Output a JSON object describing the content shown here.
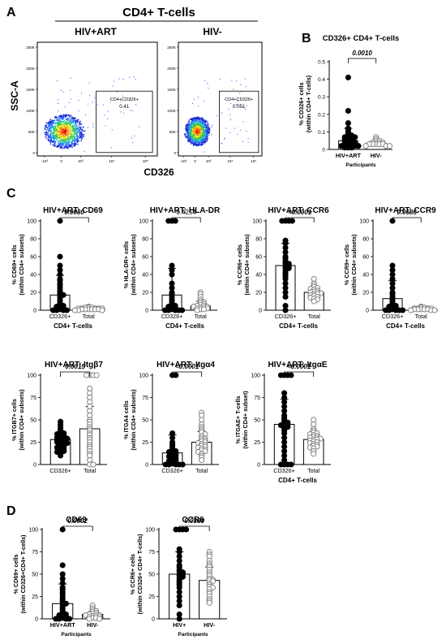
{
  "panel_letters": [
    "A",
    "B",
    "C",
    "D"
  ],
  "panelA": {
    "title": "CD4+ T-cells",
    "groups": [
      "HIV+ART",
      "HIV-"
    ],
    "ylabel": "SSC-A",
    "xlabel": "CD326",
    "gates": [
      {
        "label": "CD4+CD326+",
        "value": "0.41"
      },
      {
        "label": "CD4+CD326+",
        "value": "0.051"
      }
    ],
    "y_ticks": [
      "250K",
      "200K",
      "150K",
      "100K",
      "50K",
      "0"
    ],
    "x_ticks": [
      "-10³",
      "0",
      "10³",
      "10⁴",
      "10⁵"
    ]
  },
  "chart_data": [
    {
      "id": "B",
      "type": "scatter",
      "title": "CD326+ CD4+ T-cells",
      "categories": [
        "HIV+ART",
        "HIV-"
      ],
      "xlabel": "Participants",
      "ylabel": [
        "% CD326+ cells",
        "(within CD4+ T-cells)"
      ],
      "ylim": [
        0,
        0.5
      ],
      "yticks": [
        0,
        0.1,
        0.2,
        0.3,
        0.4,
        0.5
      ],
      "pvalue": "0.0010",
      "p_italic": true,
      "groups": [
        {
          "style": "filled",
          "median": 0.05,
          "sd": 0.07,
          "values": [
            0.41,
            0.22,
            0.15,
            0.12,
            0.11,
            0.1,
            0.09,
            0.08,
            0.08,
            0.07,
            0.07,
            0.06,
            0.06,
            0.06,
            0.05,
            0.05,
            0.05,
            0.04,
            0.04,
            0.04,
            0.04,
            0.03,
            0.03,
            0.03,
            0.02,
            0.02,
            0.02,
            0.01,
            0.01,
            0.01
          ]
        },
        {
          "style": "open",
          "median": 0.035,
          "sd": 0.015,
          "values": [
            0.07,
            0.06,
            0.05,
            0.05,
            0.04,
            0.04,
            0.04,
            0.04,
            0.03,
            0.03,
            0.03,
            0.03,
            0.03,
            0.02,
            0.02,
            0.02
          ]
        }
      ]
    },
    {
      "id": "C1",
      "type": "scatter",
      "title": "HIV+ART: CD69",
      "categories": [
        "CD326+",
        "Total"
      ],
      "xlabel": "CD4+ T-cells",
      "ylabel": [
        "% CD69+ cells",
        "(within CD4+ subsets)"
      ],
      "ylim": [
        0,
        100
      ],
      "yticks": [
        0,
        20,
        40,
        60,
        80,
        100
      ],
      "pvalue": "0.0080",
      "p_italic": true,
      "groups": [
        {
          "style": "filled",
          "median": 17,
          "sd": 22,
          "values": [
            100,
            60,
            50,
            45,
            40,
            35,
            33,
            30,
            28,
            25,
            22,
            20,
            18,
            17,
            15,
            12,
            10,
            8,
            6,
            5,
            4,
            3,
            2,
            1,
            0,
            0,
            0,
            0
          ]
        },
        {
          "style": "open",
          "median": 2,
          "sd": 1,
          "values": [
            4,
            3,
            3,
            3,
            2,
            2,
            2,
            2,
            2,
            1,
            1,
            1,
            1,
            1,
            1,
            0,
            0,
            0
          ]
        }
      ]
    },
    {
      "id": "C2",
      "type": "scatter",
      "title": "HIV+ART: HLA-DR",
      "categories": [
        "CD326+",
        "Total"
      ],
      "xlabel": "CD4+ T-cells",
      "ylabel": [
        "% HLA-DR+ cells",
        "(within CD4+ subsets)"
      ],
      "ylim": [
        0,
        100
      ],
      "yticks": [
        0,
        20,
        40,
        60,
        80,
        100
      ],
      "pvalue": "0.4254",
      "p_italic": false,
      "groups": [
        {
          "style": "filled",
          "median": 17,
          "sd": 30,
          "values": [
            100,
            100,
            100,
            50,
            45,
            40,
            30,
            25,
            20,
            18,
            15,
            12,
            10,
            8,
            6,
            5,
            4,
            3,
            2,
            1,
            0,
            0,
            0,
            0,
            0
          ]
        },
        {
          "style": "open",
          "median": 5,
          "sd": 5,
          "values": [
            20,
            18,
            15,
            12,
            10,
            9,
            8,
            7,
            6,
            5,
            5,
            4,
            4,
            3,
            3,
            2,
            2,
            1,
            1,
            0
          ]
        }
      ]
    },
    {
      "id": "C3",
      "type": "scatter",
      "title": "HIV+ART: CCR6",
      "categories": [
        "CD326+",
        "Total"
      ],
      "xlabel": "CD4+ T-cells",
      "ylabel": [
        "% CCR6+ cells",
        "(within CD4+ subsets)"
      ],
      "ylim": [
        0,
        100
      ],
      "yticks": [
        0,
        20,
        40,
        60,
        80,
        100
      ],
      "pvalue": "<0.0001",
      "p_italic": true,
      "groups": [
        {
          "style": "filled",
          "median": 50,
          "sd": 25,
          "values": [
            100,
            100,
            100,
            100,
            78,
            75,
            70,
            65,
            60,
            58,
            55,
            53,
            52,
            50,
            50,
            48,
            47,
            45,
            42,
            40,
            38,
            35,
            30,
            25,
            20,
            15,
            5,
            0
          ]
        },
        {
          "style": "open",
          "median": 20,
          "sd": 5,
          "values": [
            35,
            30,
            28,
            26,
            25,
            24,
            23,
            22,
            21,
            20,
            20,
            19,
            18,
            18,
            17,
            16,
            15,
            14,
            13,
            12,
            10
          ]
        }
      ]
    },
    {
      "id": "C4",
      "type": "scatter",
      "title": "HIV+ART: CCR9",
      "categories": [
        "CD326+",
        "Total"
      ],
      "xlabel": "CD4+ T-cells",
      "ylabel": [
        "% CCR9+ cells",
        "(within CD4+ subsets)"
      ],
      "ylim": [
        0,
        100
      ],
      "yticks": [
        0,
        20,
        40,
        60,
        80,
        100
      ],
      "pvalue": "0.0686",
      "p_italic": true,
      "groups": [
        {
          "style": "filled",
          "median": 13,
          "sd": 20,
          "values": [
            100,
            50,
            45,
            40,
            35,
            30,
            25,
            20,
            18,
            15,
            12,
            10,
            8,
            6,
            5,
            4,
            3,
            2,
            1,
            0,
            0,
            0,
            0,
            0
          ]
        },
        {
          "style": "open",
          "median": 2,
          "sd": 1,
          "values": [
            4,
            3,
            3,
            2,
            2,
            2,
            2,
            1,
            1,
            1,
            1,
            1,
            0,
            0,
            0
          ]
        }
      ]
    },
    {
      "id": "C5",
      "type": "scatter",
      "title": "HIV+ART: Itgβ7",
      "categories": [
        "CD326+",
        "Total"
      ],
      "xlabel": "",
      "ylabel": [
        "% ITGB7+ cells",
        "(within CD4+ subsets)"
      ],
      "ylim": [
        0,
        100
      ],
      "yticks": [
        0,
        25,
        50,
        75,
        100
      ],
      "pvalue": "0.0015",
      "p_italic": true,
      "groups": [
        {
          "style": "filled",
          "median": 28,
          "sd": 8,
          "values": [
            48,
            45,
            42,
            40,
            38,
            36,
            35,
            34,
            33,
            32,
            31,
            30,
            30,
            29,
            28,
            28,
            27,
            26,
            25,
            25,
            24,
            23,
            22,
            21,
            20,
            19,
            18,
            17,
            16,
            15,
            14,
            12,
            10
          ]
        },
        {
          "style": "open",
          "median": 40,
          "sd": 25,
          "values": [
            100,
            100,
            100,
            100,
            85,
            80,
            75,
            70,
            65,
            60,
            55,
            50,
            48,
            45,
            42,
            40,
            38,
            35,
            33,
            30,
            28,
            25,
            22,
            20,
            18,
            15,
            12,
            10,
            5,
            0,
            0
          ]
        }
      ]
    },
    {
      "id": "C6",
      "type": "scatter",
      "title": "HIV+ART: Itgα4",
      "categories": [
        "CD326+",
        "Total"
      ],
      "xlabel": "",
      "ylabel": [
        "% ITGA4 cells",
        "(within CD4+ subsets)"
      ],
      "ylim": [
        0,
        100
      ],
      "yticks": [
        0,
        25,
        50,
        75,
        100
      ],
      "pvalue": "<0.0001",
      "p_italic": true,
      "groups": [
        {
          "style": "filled",
          "median": 13,
          "sd": 20,
          "values": [
            100,
            100,
            35,
            30,
            25,
            22,
            20,
            18,
            16,
            15,
            14,
            13,
            12,
            11,
            10,
            9,
            8,
            7,
            6,
            5,
            4,
            3,
            2,
            1,
            0,
            0,
            0,
            0,
            0
          ]
        },
        {
          "style": "open",
          "median": 25,
          "sd": 12,
          "values": [
            58,
            55,
            50,
            45,
            42,
            40,
            38,
            36,
            34,
            32,
            30,
            29,
            28,
            27,
            26,
            25,
            24,
            23,
            22,
            21,
            20,
            19,
            18,
            17,
            16,
            15,
            14,
            12,
            10,
            8,
            5
          ]
        }
      ]
    },
    {
      "id": "C7",
      "type": "scatter",
      "title": "HIV+ART: ItgαE",
      "categories": [
        "CD326+",
        "Total"
      ],
      "xlabel": "CD4+ T-cells",
      "ylabel": [
        "% ITGAE+ T-cells",
        "(within CD4+ subset)"
      ],
      "ylim": [
        0,
        100
      ],
      "yticks": [
        0,
        25,
        50,
        75,
        100
      ],
      "pvalue": "<0.0001",
      "p_italic": true,
      "groups": [
        {
          "style": "filled",
          "median": 45,
          "sd": 28,
          "values": [
            100,
            100,
            100,
            100,
            80,
            75,
            70,
            65,
            60,
            55,
            52,
            50,
            48,
            47,
            46,
            45,
            44,
            43,
            42,
            40,
            38,
            35,
            30,
            25,
            20,
            15,
            10,
            5,
            0,
            0,
            0,
            0
          ]
        },
        {
          "style": "open",
          "median": 28,
          "sd": 6,
          "values": [
            50,
            45,
            40,
            38,
            36,
            35,
            34,
            33,
            32,
            31,
            30,
            30,
            29,
            28,
            28,
            27,
            26,
            25,
            24,
            23,
            22,
            21,
            20,
            19,
            18,
            15,
            12
          ]
        }
      ]
    },
    {
      "id": "D1",
      "type": "scatter",
      "title": "CD69",
      "categories": [
        "HIV+ART",
        "HIV-"
      ],
      "xlabel": "Participants",
      "ylabel": [
        "% CD69+ cells",
        "(within CD326+CD4+ T-cells)"
      ],
      "ylim": [
        0,
        100
      ],
      "yticks": [
        0,
        25,
        50,
        75,
        100
      ],
      "pvalue": "0.0002",
      "p_italic": true,
      "groups": [
        {
          "style": "filled",
          "median": 17,
          "sd": 22,
          "values": [
            100,
            60,
            50,
            45,
            40,
            35,
            33,
            30,
            28,
            25,
            22,
            20,
            18,
            17,
            15,
            12,
            10,
            8,
            6,
            5,
            4,
            3,
            2,
            1,
            0,
            0,
            0,
            0
          ]
        },
        {
          "style": "open",
          "median": 5,
          "sd": 3,
          "values": [
            15,
            12,
            10,
            9,
            8,
            7,
            6,
            5,
            5,
            4,
            4,
            3,
            3,
            2,
            2,
            1,
            1,
            0,
            0
          ]
        }
      ]
    },
    {
      "id": "D2",
      "type": "scatter",
      "title": "CCR6",
      "categories": [
        "HIV+",
        "HIV-"
      ],
      "xlabel": "Participants",
      "ylabel": [
        "% CCR6+ cells",
        "(within CD326+ CD4+ T-cells)"
      ],
      "ylim": [
        0,
        100
      ],
      "yticks": [
        0,
        25,
        50,
        75,
        100
      ],
      "pvalue": "0.0389",
      "p_italic": true,
      "groups": [
        {
          "style": "filled",
          "median": 50,
          "sd": 25,
          "values": [
            100,
            100,
            100,
            100,
            78,
            75,
            70,
            65,
            60,
            58,
            55,
            53,
            52,
            50,
            50,
            48,
            47,
            45,
            42,
            40,
            38,
            35,
            30,
            25,
            20,
            15,
            5,
            0
          ]
        },
        {
          "style": "open",
          "median": 43,
          "sd": 15,
          "values": [
            75,
            72,
            70,
            65,
            62,
            60,
            58,
            55,
            52,
            50,
            48,
            45,
            44,
            43,
            42,
            40,
            38,
            36,
            35,
            33,
            30,
            28,
            25,
            22,
            20,
            18
          ]
        }
      ]
    }
  ]
}
